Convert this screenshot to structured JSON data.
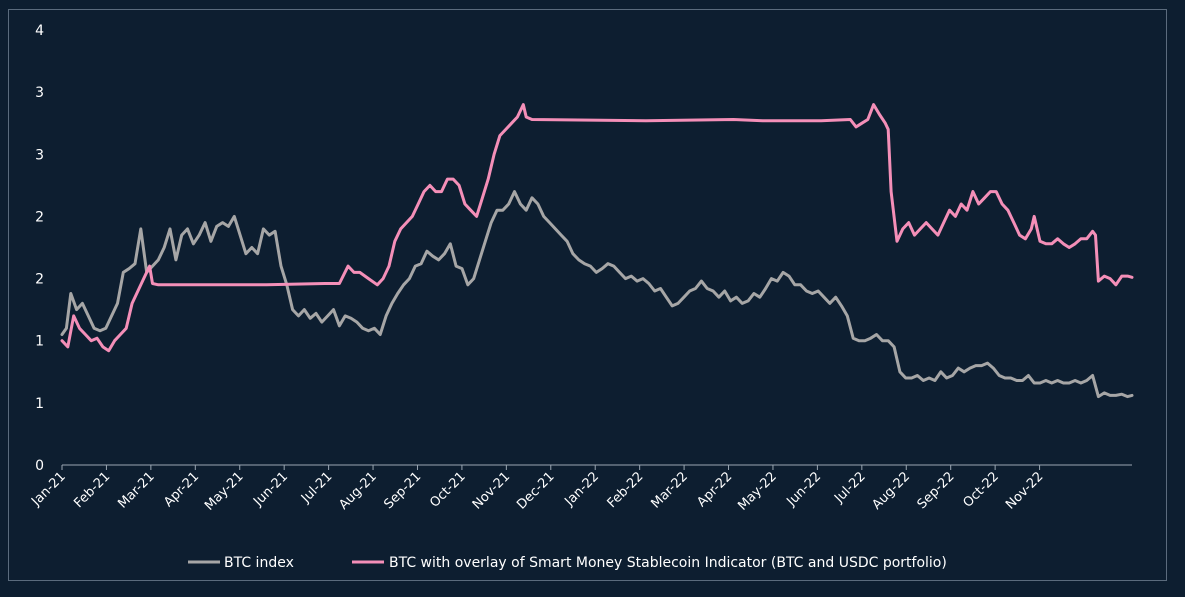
{
  "chart_data": {
    "type": "line",
    "title": "",
    "xlabel": "",
    "ylabel": "",
    "y_tick_labels": [
      "0",
      "1",
      "1",
      "2",
      "2",
      "3",
      "3",
      "4"
    ],
    "x_tick_labels": [
      "Jan-21",
      "Feb-21",
      "Mar-21",
      "Apr-21",
      "May-21",
      "Jun-21",
      "Jul-21",
      "Aug-21",
      "Sep-21",
      "Oct-21",
      "Nov-21",
      "Dec-21",
      "Jan-22",
      "Feb-22",
      "Mar-22",
      "Apr-22",
      "May-22",
      "Jun-22",
      "Jul-22",
      "Aug-22",
      "Sep-22",
      "Oct-22",
      "Nov-22"
    ],
    "ylim": [
      0,
      3.5
    ],
    "grid": false,
    "legend_position": "bottom",
    "series": [
      {
        "name": "BTC index",
        "color": "#a6a6a6",
        "points": [
          [
            0,
            1.05
          ],
          [
            3,
            1.1
          ],
          [
            6,
            1.38
          ],
          [
            10,
            1.25
          ],
          [
            14,
            1.3
          ],
          [
            18,
            1.2
          ],
          [
            22,
            1.1
          ],
          [
            26,
            1.08
          ],
          [
            30,
            1.1
          ],
          [
            34,
            1.2
          ],
          [
            38,
            1.3
          ],
          [
            42,
            1.55
          ],
          [
            46,
            1.58
          ],
          [
            50,
            1.62
          ],
          [
            54,
            1.9
          ],
          [
            58,
            1.55
          ],
          [
            62,
            1.6
          ],
          [
            66,
            1.65
          ],
          [
            70,
            1.75
          ],
          [
            74,
            1.9
          ],
          [
            78,
            1.65
          ],
          [
            82,
            1.85
          ],
          [
            86,
            1.9
          ],
          [
            90,
            1.78
          ],
          [
            94,
            1.85
          ],
          [
            98,
            1.95
          ],
          [
            102,
            1.8
          ],
          [
            106,
            1.92
          ],
          [
            110,
            1.95
          ],
          [
            114,
            1.92
          ],
          [
            118,
            2.0
          ],
          [
            122,
            1.85
          ],
          [
            126,
            1.7
          ],
          [
            130,
            1.75
          ],
          [
            134,
            1.7
          ],
          [
            138,
            1.9
          ],
          [
            142,
            1.85
          ],
          [
            146,
            1.88
          ],
          [
            150,
            1.6
          ],
          [
            154,
            1.45
          ],
          [
            158,
            1.25
          ],
          [
            162,
            1.2
          ],
          [
            166,
            1.25
          ],
          [
            170,
            1.18
          ],
          [
            174,
            1.22
          ],
          [
            178,
            1.15
          ],
          [
            182,
            1.2
          ],
          [
            186,
            1.25
          ],
          [
            190,
            1.12
          ],
          [
            194,
            1.2
          ],
          [
            198,
            1.18
          ],
          [
            202,
            1.15
          ],
          [
            206,
            1.1
          ],
          [
            210,
            1.08
          ],
          [
            214,
            1.1
          ],
          [
            218,
            1.05
          ],
          [
            222,
            1.2
          ],
          [
            226,
            1.3
          ],
          [
            230,
            1.38
          ],
          [
            234,
            1.45
          ],
          [
            238,
            1.5
          ],
          [
            242,
            1.6
          ],
          [
            246,
            1.62
          ],
          [
            250,
            1.72
          ],
          [
            254,
            1.68
          ],
          [
            258,
            1.65
          ],
          [
            262,
            1.7
          ],
          [
            266,
            1.78
          ],
          [
            270,
            1.6
          ],
          [
            274,
            1.58
          ],
          [
            278,
            1.45
          ],
          [
            282,
            1.5
          ],
          [
            286,
            1.65
          ],
          [
            290,
            1.8
          ],
          [
            294,
            1.95
          ],
          [
            298,
            2.05
          ],
          [
            302,
            2.05
          ],
          [
            306,
            2.1
          ],
          [
            310,
            2.2
          ],
          [
            314,
            2.1
          ],
          [
            318,
            2.05
          ],
          [
            322,
            2.15
          ],
          [
            326,
            2.1
          ],
          [
            330,
            2.0
          ],
          [
            334,
            1.95
          ],
          [
            338,
            1.9
          ],
          [
            342,
            1.85
          ],
          [
            346,
            1.8
          ],
          [
            350,
            1.7
          ],
          [
            354,
            1.65
          ],
          [
            358,
            1.62
          ],
          [
            362,
            1.6
          ],
          [
            366,
            1.55
          ],
          [
            370,
            1.58
          ],
          [
            374,
            1.62
          ],
          [
            378,
            1.6
          ],
          [
            382,
            1.55
          ],
          [
            386,
            1.5
          ],
          [
            390,
            1.52
          ],
          [
            394,
            1.48
          ],
          [
            398,
            1.5
          ],
          [
            402,
            1.46
          ],
          [
            406,
            1.4
          ],
          [
            410,
            1.42
          ],
          [
            414,
            1.35
          ],
          [
            418,
            1.28
          ],
          [
            422,
            1.3
          ],
          [
            426,
            1.35
          ],
          [
            430,
            1.4
          ],
          [
            434,
            1.42
          ],
          [
            438,
            1.48
          ],
          [
            442,
            1.42
          ],
          [
            446,
            1.4
          ],
          [
            450,
            1.35
          ],
          [
            454,
            1.4
          ],
          [
            458,
            1.32
          ],
          [
            462,
            1.35
          ],
          [
            466,
            1.3
          ],
          [
            470,
            1.32
          ],
          [
            474,
            1.38
          ],
          [
            478,
            1.35
          ],
          [
            482,
            1.42
          ],
          [
            486,
            1.5
          ],
          [
            490,
            1.48
          ],
          [
            494,
            1.55
          ],
          [
            498,
            1.52
          ],
          [
            502,
            1.45
          ],
          [
            506,
            1.45
          ],
          [
            510,
            1.4
          ],
          [
            514,
            1.38
          ],
          [
            518,
            1.4
          ],
          [
            522,
            1.35
          ],
          [
            526,
            1.3
          ],
          [
            530,
            1.35
          ],
          [
            534,
            1.28
          ],
          [
            538,
            1.2
          ],
          [
            542,
            1.02
          ],
          [
            546,
            1.0
          ],
          [
            550,
            1.0
          ],
          [
            554,
            1.02
          ],
          [
            558,
            1.05
          ],
          [
            562,
            1.0
          ],
          [
            566,
            1.0
          ],
          [
            570,
            0.95
          ],
          [
            574,
            0.75
          ],
          [
            578,
            0.7
          ],
          [
            582,
            0.7
          ],
          [
            586,
            0.72
          ],
          [
            590,
            0.68
          ],
          [
            594,
            0.7
          ],
          [
            598,
            0.68
          ],
          [
            602,
            0.75
          ],
          [
            606,
            0.7
          ],
          [
            610,
            0.72
          ],
          [
            614,
            0.78
          ],
          [
            618,
            0.75
          ],
          [
            622,
            0.78
          ],
          [
            626,
            0.8
          ],
          [
            630,
            0.8
          ],
          [
            634,
            0.82
          ],
          [
            638,
            0.78
          ],
          [
            642,
            0.72
          ],
          [
            646,
            0.7
          ],
          [
            650,
            0.7
          ],
          [
            654,
            0.68
          ],
          [
            658,
            0.68
          ],
          [
            662,
            0.72
          ],
          [
            666,
            0.66
          ],
          [
            670,
            0.66
          ],
          [
            674,
            0.68
          ],
          [
            678,
            0.66
          ],
          [
            682,
            0.68
          ],
          [
            686,
            0.66
          ],
          [
            690,
            0.66
          ],
          [
            694,
            0.68
          ],
          [
            698,
            0.66
          ],
          [
            702,
            0.68
          ],
          [
            706,
            0.72
          ],
          [
            710,
            0.55
          ],
          [
            714,
            0.58
          ],
          [
            718,
            0.56
          ],
          [
            722,
            0.56
          ],
          [
            726,
            0.57
          ],
          [
            730,
            0.55
          ],
          [
            733,
            0.56
          ]
        ]
      },
      {
        "name": "BTC with overlay of Smart Money Stablecoin Indicator (BTC and USDC portfolio)",
        "color": "#f48fb8",
        "points": [
          [
            0,
            1.0
          ],
          [
            4,
            0.95
          ],
          [
            8,
            1.2
          ],
          [
            12,
            1.1
          ],
          [
            16,
            1.05
          ],
          [
            20,
            1.0
          ],
          [
            24,
            1.02
          ],
          [
            28,
            0.95
          ],
          [
            32,
            0.92
          ],
          [
            36,
            1.0
          ],
          [
            40,
            1.05
          ],
          [
            44,
            1.1
          ],
          [
            48,
            1.3
          ],
          [
            52,
            1.4
          ],
          [
            56,
            1.5
          ],
          [
            60,
            1.6
          ],
          [
            62,
            1.46
          ],
          [
            66,
            1.45
          ],
          [
            100,
            1.45
          ],
          [
            140,
            1.45
          ],
          [
            180,
            1.46
          ],
          [
            190,
            1.46
          ],
          [
            196,
            1.6
          ],
          [
            200,
            1.55
          ],
          [
            204,
            1.55
          ],
          [
            210,
            1.5
          ],
          [
            216,
            1.45
          ],
          [
            220,
            1.5
          ],
          [
            224,
            1.6
          ],
          [
            228,
            1.8
          ],
          [
            232,
            1.9
          ],
          [
            236,
            1.95
          ],
          [
            240,
            2.0
          ],
          [
            244,
            2.1
          ],
          [
            248,
            2.2
          ],
          [
            252,
            2.25
          ],
          [
            256,
            2.2
          ],
          [
            260,
            2.2
          ],
          [
            264,
            2.3
          ],
          [
            268,
            2.3
          ],
          [
            272,
            2.25
          ],
          [
            276,
            2.1
          ],
          [
            280,
            2.05
          ],
          [
            284,
            2.0
          ],
          [
            288,
            2.15
          ],
          [
            292,
            2.3
          ],
          [
            296,
            2.5
          ],
          [
            300,
            2.65
          ],
          [
            304,
            2.7
          ],
          [
            308,
            2.75
          ],
          [
            312,
            2.8
          ],
          [
            316,
            2.9
          ],
          [
            318,
            2.8
          ],
          [
            322,
            2.78
          ],
          [
            400,
            2.77
          ],
          [
            460,
            2.78
          ],
          [
            480,
            2.77
          ],
          [
            520,
            2.77
          ],
          [
            540,
            2.78
          ],
          [
            544,
            2.72
          ],
          [
            548,
            2.75
          ],
          [
            552,
            2.78
          ],
          [
            556,
            2.9
          ],
          [
            560,
            2.82
          ],
          [
            564,
            2.75
          ],
          [
            566,
            2.7
          ],
          [
            568,
            2.2
          ],
          [
            572,
            1.8
          ],
          [
            576,
            1.9
          ],
          [
            580,
            1.95
          ],
          [
            584,
            1.85
          ],
          [
            588,
            1.9
          ],
          [
            592,
            1.95
          ],
          [
            596,
            1.9
          ],
          [
            600,
            1.85
          ],
          [
            604,
            1.95
          ],
          [
            608,
            2.05
          ],
          [
            612,
            2.0
          ],
          [
            616,
            2.1
          ],
          [
            620,
            2.05
          ],
          [
            624,
            2.2
          ],
          [
            628,
            2.1
          ],
          [
            632,
            2.15
          ],
          [
            636,
            2.2
          ],
          [
            640,
            2.2
          ],
          [
            644,
            2.1
          ],
          [
            648,
            2.05
          ],
          [
            652,
            1.95
          ],
          [
            656,
            1.85
          ],
          [
            660,
            1.82
          ],
          [
            664,
            1.9
          ],
          [
            666,
            2.0
          ],
          [
            670,
            1.8
          ],
          [
            674,
            1.78
          ],
          [
            678,
            1.78
          ],
          [
            682,
            1.82
          ],
          [
            686,
            1.78
          ],
          [
            690,
            1.75
          ],
          [
            694,
            1.78
          ],
          [
            698,
            1.82
          ],
          [
            702,
            1.82
          ],
          [
            706,
            1.88
          ],
          [
            708,
            1.85
          ],
          [
            710,
            1.48
          ],
          [
            714,
            1.52
          ],
          [
            718,
            1.5
          ],
          [
            722,
            1.45
          ],
          [
            726,
            1.52
          ],
          [
            730,
            1.52
          ],
          [
            733,
            1.51
          ]
        ]
      }
    ]
  }
}
